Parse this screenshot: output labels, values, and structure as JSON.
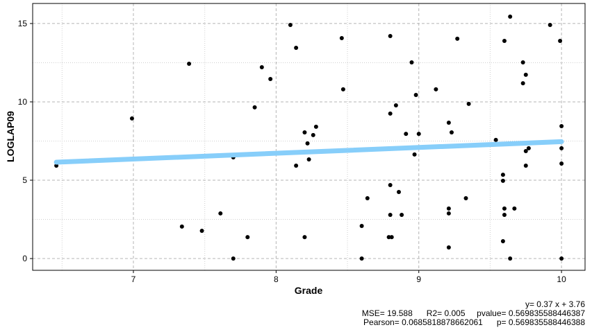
{
  "chart_data": {
    "type": "scatter",
    "x_label": "Grade",
    "y_label": "LOGLAP09",
    "xlim": [
      6.294,
      10.165
    ],
    "ylim": [
      -0.75,
      16.28
    ],
    "xticks": [
      7,
      8,
      9,
      10
    ],
    "yticks": [
      0,
      5,
      10,
      15
    ],
    "xminor": [
      6.5,
      7.5,
      8.5,
      9.5
    ],
    "yminor": [
      2.5,
      7.5,
      12.5
    ],
    "grid": true,
    "point_color": "#000000",
    "fit_line": {
      "x": [
        6.46,
        10
      ],
      "y": [
        6.15,
        7.46
      ],
      "color": "#87cefa"
    },
    "annotations": [
      "y= 0.37 x + 3.76",
      "MSE= 19.588      R2= 0.005     pvalue= 0.569835588446387",
      "Pearson= 0.0685818878662061      p= 0.569835588446388"
    ],
    "x": [
      6.46,
      6.99,
      7.39,
      7.34,
      7.48,
      7.61,
      7.7,
      7.7,
      7.8,
      7.85,
      7.9,
      7.96,
      8.1,
      8.14,
      8.14,
      8.2,
      8.2,
      8.22,
      8.23,
      8.28,
      8.26,
      8.46,
      8.47,
      8.6,
      8.6,
      8.64,
      8.8,
      8.8,
      8.8,
      8.79,
      8.81,
      8.8,
      8.84,
      8.86,
      8.88,
      8.91,
      8.95,
      8.97,
      8.98,
      9.0,
      9.12,
      9.21,
      9.21,
      9.21,
      9.21,
      9.23,
      9.27,
      9.33,
      9.35,
      9.54,
      9.6,
      9.59,
      9.59,
      9.6,
      9.6,
      9.59,
      9.64,
      9.64,
      9.67,
      9.73,
      9.73,
      9.75,
      9.75,
      9.75,
      9.77,
      9.92,
      9.99,
      10,
      10,
      10,
      10
    ],
    "y": [
      5.93,
      8.94,
      12.43,
      2.04,
      1.77,
      2.88,
      6.46,
      0,
      1.37,
      9.65,
      12.21,
      11.46,
      14.91,
      13.45,
      5.93,
      8.05,
      1.37,
      7.35,
      6.33,
      8.41,
      7.88,
      14.07,
      10.8,
      2.08,
      0,
      3.85,
      14.2,
      9.25,
      4.69,
      1.37,
      1.37,
      2.79,
      9.78,
      4.25,
      2.79,
      7.96,
      12.52,
      6.64,
      10.44,
      7.96,
      10.8,
      8.67,
      3.19,
      2.88,
      0.71,
      8.05,
      14.03,
      3.85,
      9.87,
      7.57,
      13.89,
      5.35,
      4.96,
      3.19,
      2.79,
      1.11,
      15.44,
      0,
      3.19,
      12.52,
      11.19,
      6.86,
      5.93,
      11.73,
      7.04,
      14.91,
      13.89,
      8.45,
      7.04,
      6.06,
      0
    ]
  }
}
